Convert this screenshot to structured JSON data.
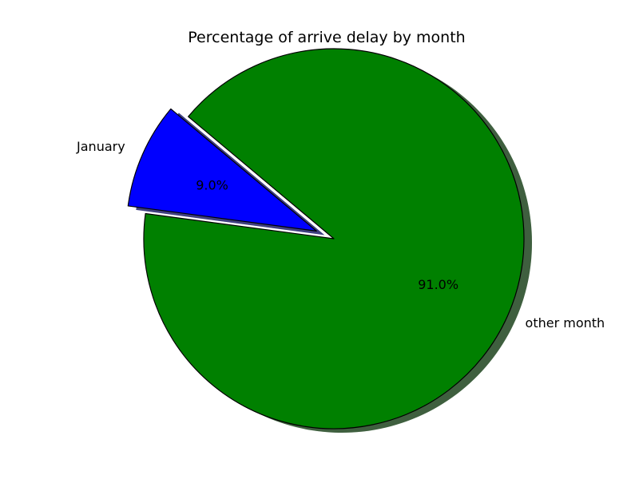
{
  "chart_data": {
    "type": "pie",
    "title": "Percentage of arrive delay by month",
    "slices": [
      {
        "label": "January",
        "value": 9.0,
        "pct_label": "9.0%",
        "color": "#0000ff",
        "exploded": true
      },
      {
        "label": "other month",
        "value": 91.0,
        "pct_label": "91.0%",
        "color": "#008000",
        "exploded": false
      }
    ],
    "shadow": true,
    "edge_color": "#000000",
    "start_angle_deg": 140,
    "direction": "counterclockwise",
    "legend": "none"
  }
}
